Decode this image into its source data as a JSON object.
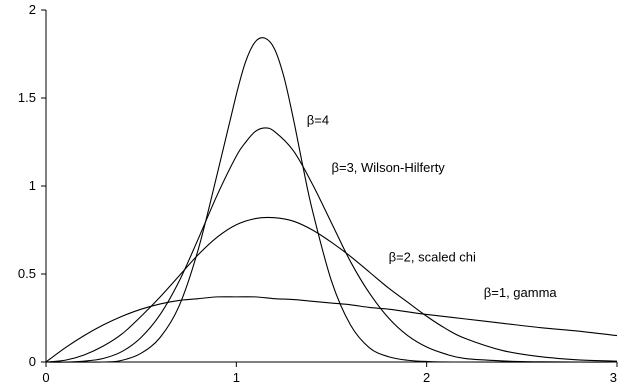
{
  "chart_data": {
    "type": "line",
    "title": "",
    "xlabel": "",
    "ylabel": "",
    "xlim": [
      0,
      3
    ],
    "ylim": [
      0,
      2
    ],
    "x_ticks": [
      {
        "value": 0,
        "label": "0"
      },
      {
        "value": 1,
        "label": "1"
      },
      {
        "value": 2,
        "label": "2"
      },
      {
        "value": 3,
        "label": "3"
      }
    ],
    "y_ticks": [
      {
        "value": 0,
        "label": "0"
      },
      {
        "value": 0.5,
        "label": "0.5"
      },
      {
        "value": 1,
        "label": "1"
      },
      {
        "value": 1.5,
        "label": "1.5"
      },
      {
        "value": 2,
        "label": "2"
      }
    ],
    "grid": false,
    "legend": "none",
    "series": [
      {
        "name": "β=1, gamma",
        "label_anchor": {
          "x": 2.3,
          "y": 0.37
        },
        "x": [
          0,
          0.1,
          0.2,
          0.3,
          0.4,
          0.5,
          0.6,
          0.7,
          0.8,
          0.9,
          1.0,
          1.1,
          1.2,
          1.3,
          1.4,
          1.5,
          1.6,
          1.7,
          1.8,
          1.9,
          2.0,
          2.2,
          2.4,
          2.6,
          2.8,
          3.0
        ],
        "values": [
          0,
          0.08,
          0.15,
          0.21,
          0.26,
          0.3,
          0.33,
          0.35,
          0.36,
          0.37,
          0.37,
          0.37,
          0.36,
          0.355,
          0.345,
          0.335,
          0.325,
          0.31,
          0.3,
          0.285,
          0.27,
          0.245,
          0.22,
          0.195,
          0.175,
          0.15
        ]
      },
      {
        "name": "β=2, scaled chi",
        "label_anchor": {
          "x": 1.8,
          "y": 0.57
        },
        "x": [
          0,
          0.1,
          0.2,
          0.3,
          0.4,
          0.5,
          0.6,
          0.7,
          0.8,
          0.9,
          1.0,
          1.1,
          1.2,
          1.3,
          1.4,
          1.5,
          1.6,
          1.7,
          1.8,
          1.9,
          2.0,
          2.1,
          2.2,
          2.4,
          2.6,
          2.8,
          3.0
        ],
        "values": [
          0,
          0.01,
          0.04,
          0.09,
          0.16,
          0.26,
          0.37,
          0.49,
          0.61,
          0.71,
          0.78,
          0.815,
          0.82,
          0.8,
          0.75,
          0.68,
          0.6,
          0.51,
          0.42,
          0.34,
          0.26,
          0.19,
          0.135,
          0.065,
          0.03,
          0.012,
          0.005
        ]
      },
      {
        "name": "β=3, Wilson-Hilferty",
        "label_anchor": {
          "x": 1.5,
          "y": 1.08
        },
        "x": [
          0,
          0.1,
          0.2,
          0.3,
          0.4,
          0.5,
          0.6,
          0.7,
          0.8,
          0.9,
          1.0,
          1.05,
          1.1,
          1.15,
          1.2,
          1.3,
          1.4,
          1.5,
          1.6,
          1.7,
          1.8,
          1.9,
          2.0,
          2.1,
          2.2,
          2.4,
          2.6,
          2.8,
          3.0
        ],
        "values": [
          0,
          0.0,
          0.005,
          0.02,
          0.06,
          0.14,
          0.27,
          0.46,
          0.7,
          0.95,
          1.17,
          1.25,
          1.31,
          1.33,
          1.31,
          1.2,
          1.01,
          0.79,
          0.57,
          0.39,
          0.25,
          0.15,
          0.085,
          0.045,
          0.02,
          0.006,
          0.001,
          0.0,
          0.0
        ]
      },
      {
        "name": "β=4",
        "label_anchor": {
          "x": 1.37,
          "y": 1.35
        },
        "x": [
          0,
          0.3,
          0.4,
          0.5,
          0.6,
          0.7,
          0.8,
          0.9,
          1.0,
          1.05,
          1.1,
          1.15,
          1.2,
          1.25,
          1.3,
          1.35,
          1.4,
          1.5,
          1.6,
          1.7,
          1.8,
          1.9,
          2.0,
          2.2,
          3.0
        ],
        "values": [
          0,
          0.0,
          0.01,
          0.05,
          0.14,
          0.32,
          0.64,
          1.07,
          1.52,
          1.71,
          1.82,
          1.84,
          1.78,
          1.62,
          1.38,
          1.11,
          0.86,
          0.46,
          0.21,
          0.08,
          0.03,
          0.01,
          0.003,
          0.0,
          0.0
        ]
      }
    ]
  }
}
